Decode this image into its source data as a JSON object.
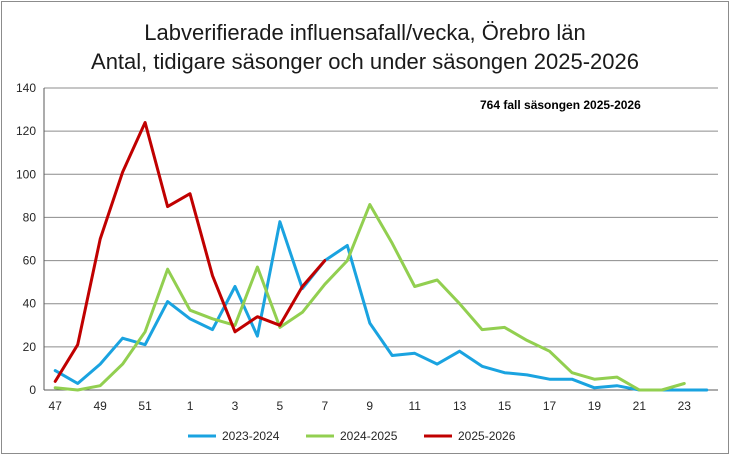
{
  "chart_data": {
    "type": "line",
    "title": "Labverifierade influensafall/vecka, Örebro län",
    "subtitle": "Antal, tidigare säsonger och under säsongen 2025-2026",
    "annotation": "764 fall säsongen 2025-2026",
    "xlabel": "",
    "ylabel": "",
    "ylim": [
      0,
      140
    ],
    "yticks": [
      0,
      20,
      40,
      60,
      80,
      100,
      120,
      140
    ],
    "grid": true,
    "legend_position": "bottom",
    "x": [
      "47",
      "48",
      "49",
      "50",
      "51",
      "52",
      "1",
      "2",
      "3",
      "4",
      "5",
      "6",
      "7",
      "8",
      "9",
      "10",
      "11",
      "12",
      "13",
      "14",
      "15",
      "16",
      "17",
      "18",
      "19",
      "20",
      "21",
      "22",
      "23",
      "24"
    ],
    "x_tick_labels": [
      "47",
      "49",
      "51",
      "1",
      "3",
      "5",
      "7",
      "9",
      "11",
      "13",
      "15",
      "17",
      "19",
      "21",
      "23"
    ],
    "series": [
      {
        "name": "2023-2024",
        "color": "#1aa3e0",
        "values": [
          9,
          3,
          12,
          24,
          21,
          41,
          33,
          28,
          48,
          25,
          78,
          47,
          60,
          67,
          31,
          16,
          17,
          12,
          18,
          11,
          8,
          7,
          5,
          5,
          1,
          2,
          0,
          0,
          0,
          0
        ]
      },
      {
        "name": "2024-2025",
        "color": "#92cf50",
        "values": [
          1,
          0,
          2,
          12,
          27,
          56,
          37,
          33,
          30,
          57,
          29,
          36,
          49,
          60,
          86,
          68,
          48,
          51,
          40,
          28,
          29,
          23,
          18,
          8,
          5,
          6,
          0,
          0,
          3,
          null
        ]
      },
      {
        "name": "2025-2026",
        "color": "#c00000",
        "values": [
          4,
          21,
          70,
          101,
          124,
          85,
          91,
          53,
          27,
          34,
          30,
          48,
          60,
          null,
          null,
          null,
          null,
          null,
          null,
          null,
          null,
          null,
          null,
          null,
          null,
          null,
          null,
          null,
          null,
          null
        ]
      }
    ]
  }
}
